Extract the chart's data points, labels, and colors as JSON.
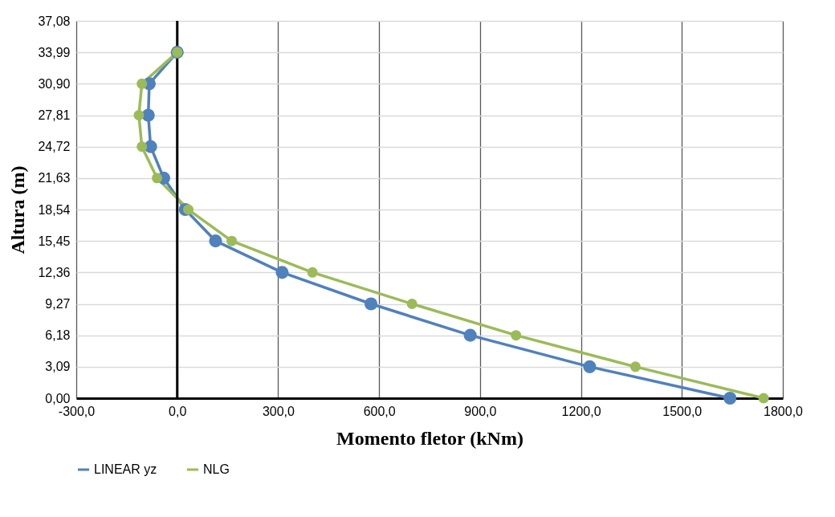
{
  "chart_data": {
    "type": "line",
    "xlabel": "Momento fletor (kNm)",
    "ylabel": "Altura (m)",
    "xlim": [
      -300,
      1800
    ],
    "ylim": [
      0,
      37.08
    ],
    "xticks": [
      {
        "value": -300,
        "label": "-300,0"
      },
      {
        "value": 0,
        "label": "0,0"
      },
      {
        "value": 300,
        "label": "300,0"
      },
      {
        "value": 600,
        "label": "600,0"
      },
      {
        "value": 900,
        "label": "900,0"
      },
      {
        "value": 1200,
        "label": "1200,0"
      },
      {
        "value": 1500,
        "label": "1500,0"
      },
      {
        "value": 1800,
        "label": "1800,0"
      }
    ],
    "yticks": [
      {
        "value": 0,
        "label": "0,00"
      },
      {
        "value": 3.09,
        "label": "3,09"
      },
      {
        "value": 6.18,
        "label": "6,18"
      },
      {
        "value": 9.27,
        "label": "9,27"
      },
      {
        "value": 12.36,
        "label": "12,36"
      },
      {
        "value": 15.45,
        "label": "15,45"
      },
      {
        "value": 18.54,
        "label": "18,54"
      },
      {
        "value": 21.63,
        "label": "21,63"
      },
      {
        "value": 24.72,
        "label": "24,72"
      },
      {
        "value": 27.81,
        "label": "27,81"
      },
      {
        "value": 30.9,
        "label": "30,90"
      },
      {
        "value": 33.99,
        "label": "33,99"
      },
      {
        "value": 37.08,
        "label": "37,08"
      }
    ],
    "grid": true,
    "legend": "bottom",
    "marker": "circle",
    "line_style": "solid",
    "ref_lines": [
      {
        "axis": "x",
        "value": 0,
        "color": "#000000"
      }
    ],
    "series": [
      {
        "name": "LINEAR yz",
        "color": "#4f81bd",
        "x": [
          1643,
          1226,
          871,
          576,
          312,
          114,
          24,
          -40,
          -79,
          -86,
          -83,
          0
        ],
        "values": [
          0,
          3.09,
          6.18,
          9.27,
          12.36,
          15.45,
          18.54,
          21.63,
          24.72,
          27.81,
          30.9,
          33.99
        ]
      },
      {
        "name": "NLG",
        "color": "#9bbb59",
        "x": [
          1743,
          1362,
          1007,
          698,
          402,
          162,
          33,
          -60,
          -105,
          -114,
          -105,
          0
        ],
        "values": [
          0,
          3.09,
          6.18,
          9.27,
          12.36,
          15.45,
          18.54,
          21.63,
          24.72,
          27.81,
          30.9,
          33.99
        ]
      }
    ]
  }
}
